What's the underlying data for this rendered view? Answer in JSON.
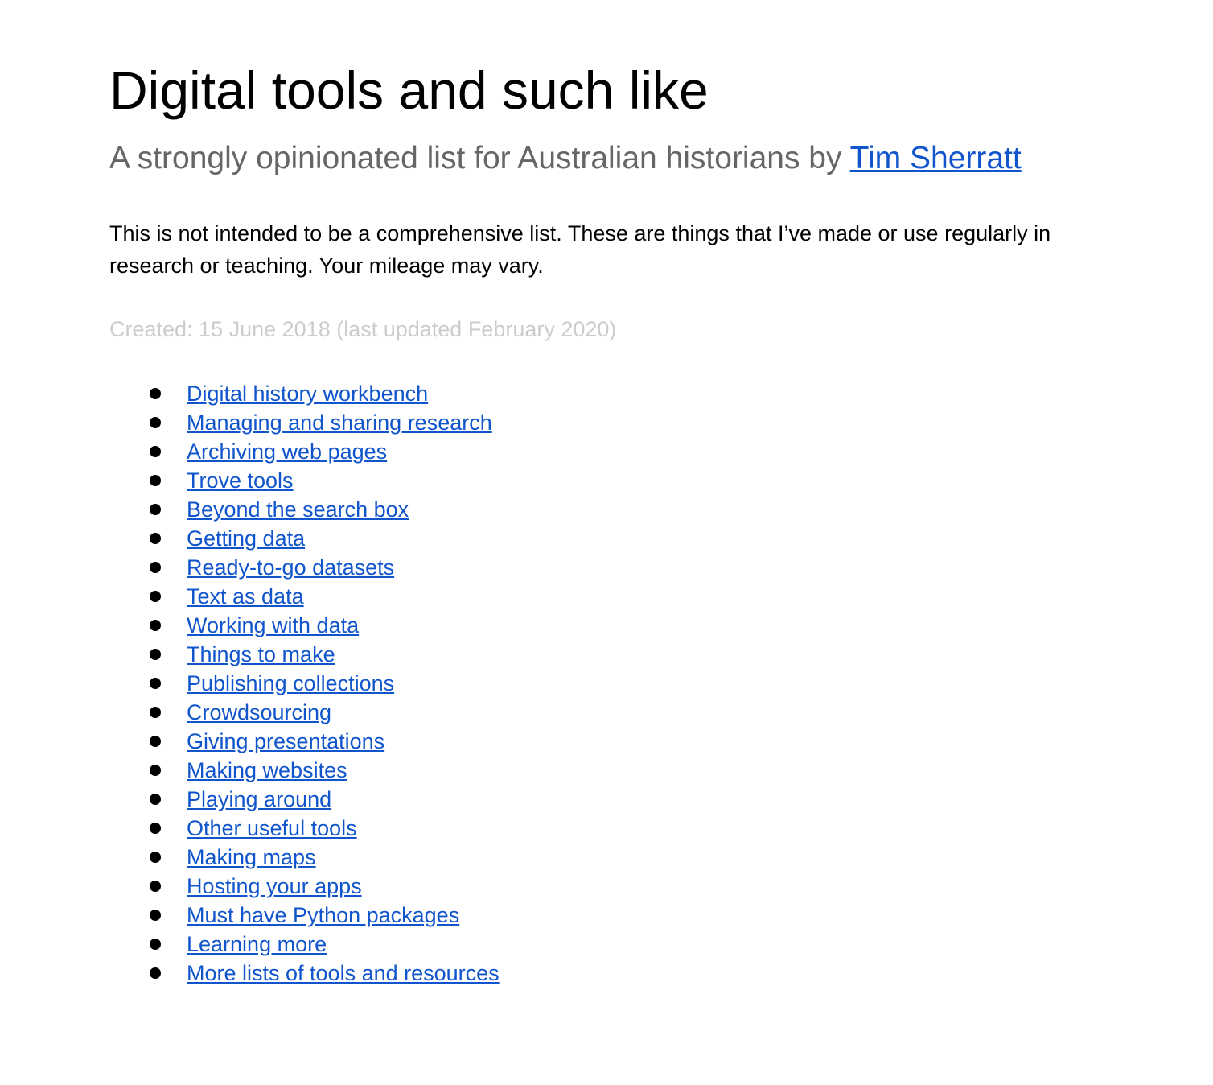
{
  "header": {
    "title": "Digital tools and such like",
    "subtitle_text": "A strongly opinionated list for Australian historians by ",
    "author_link": "Tim Sherratt"
  },
  "intro": "This is not intended to be a comprehensive list. These are things that I’ve made or use regularly in research or teaching. Your mileage may vary.",
  "created": "Created: 15 June 2018 (last updated February 2020)",
  "links": [
    "Digital history workbench",
    "Managing and sharing research",
    "Archiving web pages",
    "Trove tools",
    "Beyond the search box",
    "Getting data",
    "Ready-to-go datasets",
    "Text as data",
    "Working with data",
    "Things to make",
    "Publishing collections",
    "Crowdsourcing",
    "Giving presentations",
    "Making websites",
    "Playing around",
    "Other useful tools",
    "Making maps",
    "Hosting your apps",
    "Must have Python packages",
    "Learning more",
    "More lists of tools and resources"
  ],
  "colors": {
    "link": "#1155cc",
    "subtitle": "#666666",
    "created": "#cccccc",
    "text": "#000000"
  }
}
